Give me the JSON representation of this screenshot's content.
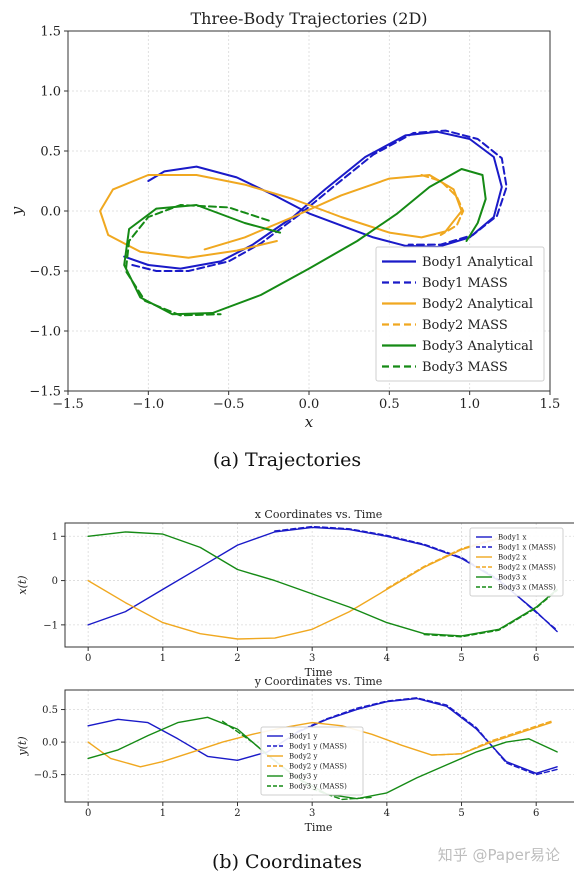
{
  "captions": {
    "a": "(a)  Trajectories",
    "b": "(b)  Coordinates"
  },
  "watermark": "知乎 @Paper易论",
  "colors": {
    "body1": "#1a1ac8",
    "body2": "#f0a820",
    "body3": "#158a15",
    "grid": "#d9d9d9",
    "axis": "#333333"
  },
  "chart_data": [
    {
      "type": "line",
      "title": "Three-Body Trajectories (2D)",
      "xlabel": "x",
      "ylabel": "y",
      "xlim": [
        -1.5,
        1.5
      ],
      "ylim": [
        -1.5,
        1.5
      ],
      "xticks": [
        -1.5,
        -1.0,
        -0.5,
        0.0,
        0.5,
        1.0,
        1.5
      ],
      "yticks": [
        -1.5,
        -1.0,
        -0.5,
        0.0,
        0.5,
        1.0,
        1.5
      ],
      "xtick_labels": [
        "−1.5",
        "−1.0",
        "−0.5",
        "0.0",
        "0.5",
        "1.0",
        "1.5"
      ],
      "ytick_labels": [
        "−1.5",
        "−1.0",
        "−0.5",
        "0.0",
        "0.5",
        "1.0",
        "1.5"
      ],
      "grid": true,
      "legend_position": "lower-right",
      "series": [
        {
          "name": "Body1 Analytical",
          "color_key": "body1",
          "dash": false,
          "x": [
            -1.15,
            -1.0,
            -0.8,
            -0.55,
            -0.35,
            -0.1,
            0.1,
            0.35,
            0.6,
            0.8,
            1.0,
            1.15,
            1.2,
            1.15,
            1.0,
            0.8,
            0.6,
            0.4,
            0.2,
            0.0,
            -0.2,
            -0.45,
            -0.7,
            -0.9,
            -1.0
          ],
          "y": [
            -0.38,
            -0.45,
            -0.48,
            -0.42,
            -0.28,
            -0.05,
            0.18,
            0.45,
            0.63,
            0.66,
            0.6,
            0.45,
            0.2,
            -0.05,
            -0.22,
            -0.3,
            -0.29,
            -0.22,
            -0.12,
            -0.02,
            0.12,
            0.28,
            0.37,
            0.33,
            0.25
          ]
        },
        {
          "name": "Body1 MASS",
          "color_key": "body1",
          "dash": true,
          "x": [
            -1.1,
            -0.95,
            -0.75,
            -0.5,
            -0.3,
            -0.05,
            0.15,
            0.4,
            0.65,
            0.85,
            1.05,
            1.2,
            1.23,
            1.17,
            1.02,
            0.82,
            0.62
          ],
          "y": [
            -0.45,
            -0.5,
            -0.5,
            -0.42,
            -0.27,
            -0.02,
            0.2,
            0.47,
            0.65,
            0.67,
            0.6,
            0.44,
            0.2,
            -0.04,
            -0.2,
            -0.28,
            -0.28
          ]
        },
        {
          "name": "Body2 Analytical",
          "color_key": "body2",
          "dash": false,
          "x": [
            -0.2,
            -0.45,
            -0.75,
            -1.05,
            -1.25,
            -1.3,
            -1.22,
            -1.0,
            -0.7,
            -0.4,
            -0.1,
            0.2,
            0.5,
            0.7,
            0.85,
            0.95,
            0.9,
            0.75,
            0.5,
            0.2,
            -0.1,
            -0.4,
            -0.65
          ],
          "y": [
            -0.25,
            -0.33,
            -0.39,
            -0.34,
            -0.2,
            0.0,
            0.18,
            0.3,
            0.3,
            0.22,
            0.1,
            -0.05,
            -0.18,
            -0.22,
            -0.17,
            0.0,
            0.18,
            0.3,
            0.27,
            0.13,
            -0.05,
            -0.22,
            -0.32
          ]
        },
        {
          "name": "Body2 MASS",
          "color_key": "body2",
          "dash": true,
          "x": [
            0.7,
            0.82,
            0.92,
            0.96,
            0.92,
            0.82
          ],
          "y": [
            0.3,
            0.25,
            0.12,
            0.0,
            -0.12,
            -0.2
          ]
        },
        {
          "name": "Body3 Analytical",
          "color_key": "body3",
          "dash": false,
          "x": [
            -0.18,
            -0.4,
            -0.7,
            -0.95,
            -1.12,
            -1.15,
            -1.05,
            -0.85,
            -0.6,
            -0.3,
            0.0,
            0.3,
            0.55,
            0.75,
            0.95,
            1.08,
            1.1,
            1.05,
            0.98
          ],
          "y": [
            -0.18,
            -0.1,
            0.05,
            0.02,
            -0.15,
            -0.45,
            -0.72,
            -0.86,
            -0.85,
            -0.7,
            -0.48,
            -0.25,
            -0.02,
            0.2,
            0.35,
            0.3,
            0.1,
            -0.1,
            -0.25
          ]
        },
        {
          "name": "Body3 MASS",
          "color_key": "body3",
          "dash": true,
          "x": [
            -0.25,
            -0.5,
            -0.8,
            -1.0,
            -1.12,
            -1.14,
            -1.02,
            -0.8,
            -0.55
          ],
          "y": [
            -0.08,
            0.03,
            0.05,
            -0.05,
            -0.25,
            -0.5,
            -0.75,
            -0.87,
            -0.86
          ]
        }
      ]
    },
    {
      "type": "line",
      "title": "x Coordinates vs. Time",
      "xlabel": "Time",
      "ylabel": "x(t)",
      "xlim": [
        -0.31,
        6.6
      ],
      "ylim": [
        -1.5,
        1.3
      ],
      "xticks": [
        0,
        1,
        2,
        3,
        4,
        5,
        6
      ],
      "yticks": [
        -1,
        0,
        1
      ],
      "xtick_labels": [
        "0",
        "1",
        "2",
        "3",
        "4",
        "5",
        "6"
      ],
      "ytick_labels": [
        "−1",
        "0",
        "1"
      ],
      "grid": true,
      "legend_position": "upper-right",
      "series": [
        {
          "name": "Body1 x",
          "color_key": "body1",
          "dash": false,
          "x": [
            0,
            0.5,
            1,
            1.5,
            2,
            2.5,
            3,
            3.5,
            4,
            4.5,
            5,
            5.5,
            6,
            6.28
          ],
          "y": [
            -1.0,
            -0.7,
            -0.2,
            0.3,
            0.8,
            1.1,
            1.2,
            1.15,
            1.0,
            0.8,
            0.5,
            0.0,
            -0.7,
            -1.15
          ]
        },
        {
          "name": "Body1 x (MASS)",
          "color_key": "body1",
          "dash": true,
          "x": [
            2.5,
            3,
            3.5,
            4,
            4.5,
            5,
            5.5,
            6,
            6.28
          ],
          "y": [
            1.12,
            1.22,
            1.17,
            1.02,
            0.82,
            0.52,
            0.02,
            -0.72,
            -1.12
          ]
        },
        {
          "name": "Body2 x",
          "color_key": "body2",
          "dash": false,
          "x": [
            0,
            0.5,
            1,
            1.5,
            2,
            2.5,
            3,
            3.5,
            4,
            4.5,
            5,
            5.5
          ],
          "y": [
            0.0,
            -0.5,
            -0.95,
            -1.2,
            -1.32,
            -1.3,
            -1.1,
            -0.7,
            -0.2,
            0.3,
            0.7,
            0.95
          ]
        },
        {
          "name": "Body2 x (MASS)",
          "color_key": "body2",
          "dash": true,
          "x": [
            4,
            4.5,
            5,
            5.5
          ],
          "y": [
            -0.18,
            0.32,
            0.72,
            0.97
          ]
        },
        {
          "name": "Body3 x",
          "color_key": "body3",
          "dash": false,
          "x": [
            0,
            0.5,
            1,
            1.5,
            2,
            2.5,
            3,
            3.5,
            4,
            4.5,
            5,
            5.5,
            6,
            6.28
          ],
          "y": [
            1.0,
            1.1,
            1.05,
            0.75,
            0.25,
            0.0,
            -0.3,
            -0.6,
            -0.95,
            -1.2,
            -1.25,
            -1.1,
            -0.6,
            -0.2
          ]
        },
        {
          "name": "Body3 x (MASS)",
          "color_key": "body3",
          "dash": true,
          "x": [
            4.5,
            5,
            5.5,
            6,
            6.28
          ],
          "y": [
            -1.22,
            -1.27,
            -1.12,
            -0.62,
            -0.22
          ]
        }
      ]
    },
    {
      "type": "line",
      "title": "y Coordinates vs. Time",
      "xlabel": "Time",
      "ylabel": "y(t)",
      "xlim": [
        -0.31,
        6.6
      ],
      "ylim": [
        -0.92,
        0.8
      ],
      "xticks": [
        0,
        1,
        2,
        3,
        4,
        5,
        6
      ],
      "yticks": [
        -0.5,
        0.0,
        0.5
      ],
      "xtick_labels": [
        "0",
        "1",
        "2",
        "3",
        "4",
        "5",
        "6"
      ],
      "ytick_labels": [
        "−0.5",
        "0.0",
        "0.5"
      ],
      "grid": true,
      "legend_position": "center",
      "series": [
        {
          "name": "Body1 y",
          "color_key": "body1",
          "dash": false,
          "x": [
            0,
            0.4,
            0.8,
            1.2,
            1.6,
            2,
            2.4,
            2.8,
            3.2,
            3.6,
            4,
            4.4,
            4.8,
            5.2,
            5.6,
            6,
            6.28
          ],
          "y": [
            0.25,
            0.35,
            0.3,
            0.05,
            -0.22,
            -0.28,
            -0.15,
            0.15,
            0.35,
            0.5,
            0.62,
            0.67,
            0.55,
            0.2,
            -0.3,
            -0.48,
            -0.38
          ]
        },
        {
          "name": "Body1 y (MASS)",
          "color_key": "body1",
          "dash": true,
          "x": [
            2.8,
            3.2,
            3.6,
            4,
            4.4,
            4.8,
            5.2,
            5.6,
            6,
            6.28
          ],
          "y": [
            0.16,
            0.36,
            0.52,
            0.63,
            0.68,
            0.57,
            0.22,
            -0.32,
            -0.5,
            -0.42
          ]
        },
        {
          "name": "Body2 y",
          "color_key": "body2",
          "dash": false,
          "x": [
            0,
            0.3,
            0.7,
            1.0,
            1.4,
            1.8,
            2.2,
            2.6,
            3.0,
            3.4,
            3.8,
            4.2,
            4.6,
            5.0,
            5.4,
            5.8,
            6.2
          ],
          "y": [
            0.0,
            -0.25,
            -0.38,
            -0.3,
            -0.15,
            0.0,
            0.12,
            0.22,
            0.3,
            0.25,
            0.12,
            -0.05,
            -0.2,
            -0.18,
            0.0,
            0.15,
            0.3
          ]
        },
        {
          "name": "Body2 y (MASS)",
          "color_key": "body2",
          "dash": true,
          "x": [
            4.6,
            5.0,
            5.4,
            5.8,
            6.2
          ],
          "y": [
            -0.2,
            -0.18,
            0.02,
            0.17,
            0.32
          ]
        },
        {
          "name": "Body3 y",
          "color_key": "body3",
          "dash": false,
          "x": [
            0,
            0.4,
            0.8,
            1.2,
            1.6,
            2,
            2.4,
            2.8,
            3.2,
            3.6,
            4,
            4.4,
            4.8,
            5.2,
            5.6,
            5.9,
            6.28
          ],
          "y": [
            -0.25,
            -0.12,
            0.1,
            0.3,
            0.38,
            0.2,
            -0.2,
            -0.55,
            -0.8,
            -0.87,
            -0.78,
            -0.55,
            -0.35,
            -0.15,
            0.0,
            0.05,
            -0.15
          ]
        },
        {
          "name": "Body3 y (MASS)",
          "color_key": "body3",
          "dash": true,
          "x": [
            1.8,
            2.2,
            2.6,
            3.0,
            3.4,
            3.8
          ],
          "y": [
            0.32,
            0.0,
            -0.38,
            -0.72,
            -0.88,
            -0.85
          ]
        }
      ]
    }
  ]
}
